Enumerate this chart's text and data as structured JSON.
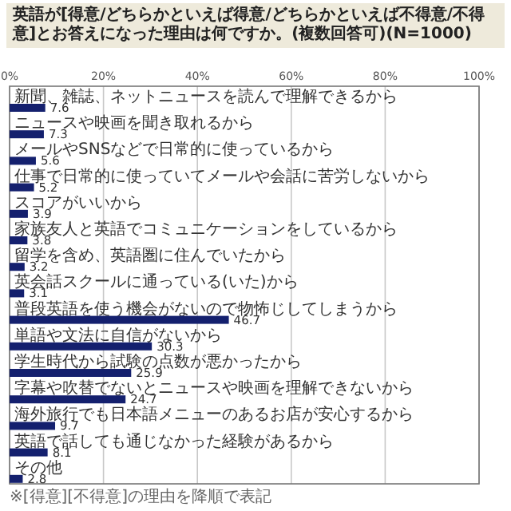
{
  "chart_data": {
    "type": "bar",
    "orientation": "horizontal",
    "title": "英語が[得意/どちらかといえば得意/どちらかといえば不得意/不得意]とお答えになった理由は何ですか。(複数回答可)(N=1000)",
    "categories": [
      "新聞、雑誌、ネットニュースを読んで理解できるから",
      "ニュースや映画を聞き取れるから",
      "メールやSNSなどで日常的に使っているから",
      "仕事で日常的に使っていてメールや会話に苦労しないから",
      "スコアがいいから",
      "家族友人と英語でコミュニケーションをしているから",
      "留学を含め、英語圏に住んでいたから",
      "英会話スクールに通っている(いた)から",
      "普段英語を使う機会がないので物怖じしてしまうから",
      "単語や文法に自信がないから",
      "学生時代から試験の点数が悪かったから",
      "字幕や吹替でないとニュースや映画を理解できないから",
      "海外旅行でも日本語メニューのあるお店が安心するから",
      "英語で話しても通じなかった経験があるから",
      "その他"
    ],
    "values": [
      7.6,
      7.3,
      5.6,
      5.2,
      3.9,
      3.8,
      3.2,
      3.1,
      46.7,
      30.3,
      25.9,
      24.7,
      9.7,
      8.1,
      2.8
    ],
    "color": "#14206e",
    "xlim": [
      0,
      100
    ],
    "xticks": [
      {
        "value": 0,
        "label": "0%"
      },
      {
        "value": 20,
        "label": "20%"
      },
      {
        "value": 40,
        "label": "40%"
      },
      {
        "value": 60,
        "label": "60%"
      },
      {
        "value": 80,
        "label": "80%"
      },
      {
        "value": 100,
        "label": "100%"
      }
    ],
    "grid": "x",
    "data_labels": true,
    "annotations": [
      "※[得意][不得意]の理由を降順で表記"
    ]
  }
}
